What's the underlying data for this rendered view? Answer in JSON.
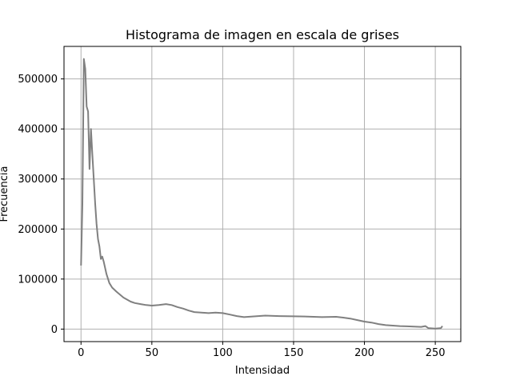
{
  "chart_data": {
    "type": "line",
    "title": "Histograma de imagen en escala de grises",
    "xlabel": "Intensidad",
    "ylabel": "Frecuencia",
    "xlim": [
      -12,
      268
    ],
    "ylim": [
      -25000,
      565000
    ],
    "xticks": [
      0,
      50,
      100,
      150,
      200,
      250
    ],
    "yticks": [
      0,
      100000,
      200000,
      300000,
      400000,
      500000
    ],
    "grid": true,
    "series": [
      {
        "color": "#808080",
        "x": [
          0,
          1,
          2,
          3,
          4,
          5,
          6,
          7,
          8,
          9,
          10,
          11,
          12,
          13,
          14,
          15,
          16,
          18,
          20,
          22,
          25,
          30,
          35,
          38,
          42,
          46,
          50,
          55,
          60,
          64,
          68,
          72,
          76,
          80,
          85,
          90,
          95,
          100,
          105,
          110,
          115,
          120,
          125,
          130,
          140,
          150,
          160,
          170,
          180,
          185,
          190,
          195,
          200,
          205,
          210,
          215,
          220,
          225,
          230,
          235,
          240,
          243,
          245,
          250,
          254,
          255
        ],
        "y": [
          127000,
          250000,
          540000,
          520000,
          445000,
          435000,
          320000,
          400000,
          350000,
          300000,
          250000,
          210000,
          180000,
          165000,
          140000,
          145000,
          135000,
          110000,
          92000,
          83000,
          75000,
          63000,
          55000,
          52000,
          50000,
          48000,
          47000,
          48000,
          50000,
          48000,
          44000,
          41000,
          37000,
          34000,
          33000,
          32000,
          33000,
          32000,
          29000,
          26000,
          24000,
          25000,
          26000,
          27000,
          26000,
          25500,
          25000,
          24000,
          24500,
          23000,
          21000,
          18000,
          15000,
          13000,
          10000,
          8000,
          7000,
          6000,
          5500,
          5000,
          4500,
          6000,
          2000,
          1000,
          2000,
          6000
        ]
      }
    ]
  }
}
